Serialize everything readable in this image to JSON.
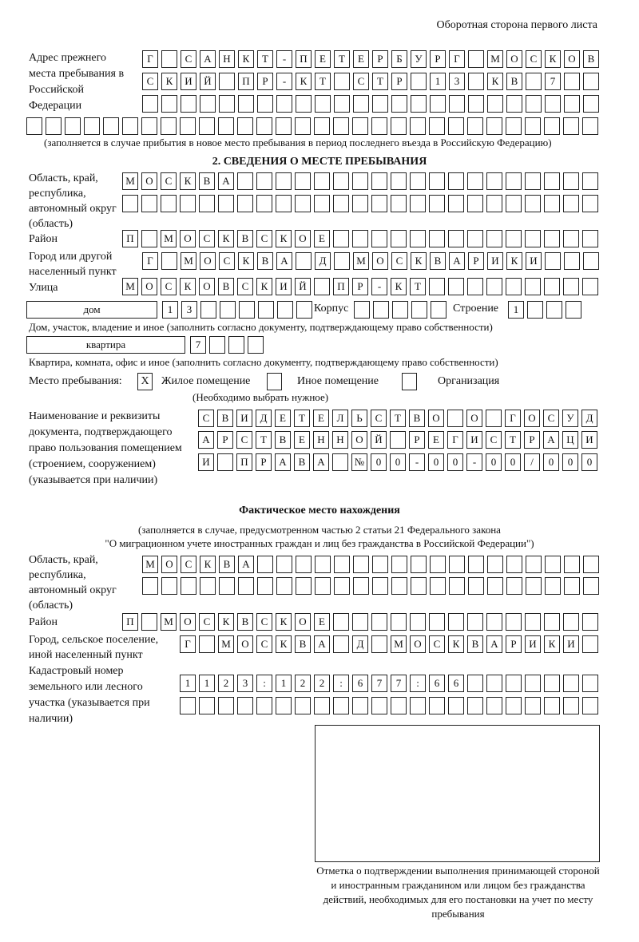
{
  "header": "Оборотная сторона первого листа",
  "prev_address": {
    "label": "Адрес прежнего места пребывания в Российской Федерации",
    "rows": [
      [
        "Г",
        "",
        "С",
        "А",
        "Н",
        "К",
        "Т",
        "-",
        "П",
        "Е",
        "Т",
        "Е",
        "Р",
        "Б",
        "У",
        "Р",
        "Г",
        "",
        "М",
        "О",
        "С",
        "К",
        "О",
        "В"
      ],
      [
        "С",
        "К",
        "И",
        "Й",
        "",
        "П",
        "Р",
        "-",
        "К",
        "Т",
        "",
        "С",
        "Т",
        "Р",
        "",
        "1",
        "3",
        "",
        "К",
        "В",
        "",
        "7",
        "",
        ""
      ],
      [
        "",
        "",
        "",
        "",
        "",
        "",
        "",
        "",
        "",
        "",
        "",
        "",
        "",
        "",
        "",
        "",
        "",
        "",
        "",
        "",
        "",
        "",
        "",
        ""
      ],
      [
        "",
        "",
        "",
        "",
        "",
        "",
        "",
        "",
        "",
        "",
        "",
        "",
        "",
        "",
        "",
        "",
        "",
        "",
        "",
        "",
        "",
        "",
        "",
        "",
        "",
        "",
        "",
        "",
        "",
        ""
      ]
    ],
    "note": "(заполняется в случае прибытия в новое место пребывания в период последнего въезда в Российскую Федерацию)"
  },
  "section2": {
    "title": "2. СВЕДЕНИЯ О МЕСТЕ ПРЕБЫВАНИЯ",
    "region_label": "Область, край, республика, автономный округ (область)",
    "region_rows": [
      [
        "М",
        "О",
        "С",
        "К",
        "В",
        "А",
        "",
        "",
        "",
        "",
        "",
        "",
        "",
        "",
        "",
        "",
        "",
        "",
        "",
        "",
        "",
        "",
        "",
        "",
        ""
      ],
      [
        "",
        "",
        "",
        "",
        "",
        "",
        "",
        "",
        "",
        "",
        "",
        "",
        "",
        "",
        "",
        "",
        "",
        "",
        "",
        "",
        "",
        "",
        "",
        "",
        ""
      ]
    ],
    "district_label": "Район",
    "district_row": [
      "П",
      "",
      "М",
      "О",
      "С",
      "К",
      "В",
      "С",
      "К",
      "О",
      "Е",
      "",
      "",
      "",
      "",
      "",
      "",
      "",
      "",
      "",
      "",
      "",
      "",
      "",
      ""
    ],
    "city_label": "Город или другой населенный пункт",
    "city_row": [
      "Г",
      "",
      "М",
      "О",
      "С",
      "К",
      "В",
      "А",
      "",
      "Д",
      "",
      "М",
      "О",
      "С",
      "К",
      "В",
      "А",
      "Р",
      "И",
      "К",
      "И",
      "",
      "",
      ""
    ],
    "street_label": "Улица",
    "street_row": [
      "М",
      "О",
      "С",
      "К",
      "О",
      "В",
      "С",
      "К",
      "И",
      "Й",
      "",
      "П",
      "Р",
      "-",
      "К",
      "Т",
      "",
      "",
      "",
      "",
      "",
      "",
      "",
      "",
      ""
    ],
    "house_type": "дом",
    "house_cells": [
      "1",
      "3",
      "",
      "",
      "",
      "",
      "",
      ""
    ],
    "korpus_label": "Корпус",
    "korpus_cells": [
      "",
      "",
      "",
      "",
      ""
    ],
    "building_label": "Строение",
    "building_cells": [
      "1",
      "",
      "",
      ""
    ],
    "house_note": "Дом, участок, владение и иное (заполнить согласно документу, подтверждающему право собственности)",
    "flat_type": "квартира",
    "flat_cells": [
      "7",
      "",
      "",
      ""
    ],
    "flat_note": "Квартира, комната, офис и иное (заполнить согласно документу, подтверждающему право собственности)",
    "stay_label": "Место пребывания:",
    "stay_options": [
      {
        "label": "Жилое помещение",
        "mark": "X"
      },
      {
        "label": "Иное помещение",
        "mark": ""
      },
      {
        "label": "Организация",
        "mark": ""
      }
    ],
    "stay_hint": "(Необходимо выбрать нужное)",
    "doc_label": "Наименование и реквизиты документа, подтверждающего право пользования помещением (строением, сооружением) (указывается при наличии)",
    "doc_rows": [
      [
        "С",
        "В",
        "И",
        "Д",
        "Е",
        "Т",
        "Е",
        "Л",
        "Ь",
        "С",
        "Т",
        "В",
        "О",
        "",
        "О",
        "",
        "Г",
        "О",
        "С",
        "У",
        "Д"
      ],
      [
        "А",
        "Р",
        "С",
        "Т",
        "В",
        "Е",
        "Н",
        "Н",
        "О",
        "Й",
        "",
        "Р",
        "Е",
        "Г",
        "И",
        "С",
        "Т",
        "Р",
        "А",
        "Ц",
        "И"
      ],
      [
        "И",
        "",
        "П",
        "Р",
        "А",
        "В",
        "А",
        "",
        "№",
        "0",
        "0",
        "-",
        "0",
        "0",
        "-",
        "0",
        "0",
        "/",
        "0",
        "0",
        "0"
      ]
    ]
  },
  "actual": {
    "title": "Фактическое место нахождения",
    "note1": "(заполняется в случае, предусмотренном частью 2 статьи 21 Федерального закона",
    "note2": "\"О миграционном учете иностранных граждан и лиц без гражданства в Российской Федерации\")",
    "region_label": "Область, край, республика, автономный округ (область)",
    "region_rows": [
      [
        "М",
        "О",
        "С",
        "К",
        "В",
        "А",
        "",
        "",
        "",
        "",
        "",
        "",
        "",
        "",
        "",
        "",
        "",
        "",
        "",
        "",
        "",
        "",
        "",
        ""
      ],
      [
        "",
        "",
        "",
        "",
        "",
        "",
        "",
        "",
        "",
        "",
        "",
        "",
        "",
        "",
        "",
        "",
        "",
        "",
        "",
        "",
        "",
        "",
        "",
        ""
      ]
    ],
    "district_label": "Район",
    "district_row": [
      "П",
      "",
      "М",
      "О",
      "С",
      "К",
      "В",
      "С",
      "К",
      "О",
      "Е",
      "",
      "",
      "",
      "",
      "",
      "",
      "",
      "",
      "",
      "",
      "",
      "",
      "",
      ""
    ],
    "city_label": "Город, сельское поселение, иной населенный пункт",
    "city_row": [
      "Г",
      "",
      "М",
      "О",
      "С",
      "К",
      "В",
      "А",
      "",
      "Д",
      "",
      "М",
      "О",
      "С",
      "К",
      "В",
      "А",
      "Р",
      "И",
      "К",
      "И",
      ""
    ],
    "cadastre_label": "Кадастровый номер земельного или лесного участка (указывается при наличии)",
    "cadastre_rows": [
      [
        "1",
        "1",
        "2",
        "3",
        ":",
        "1",
        "2",
        "2",
        ":",
        "6",
        "7",
        "7",
        ":",
        "6",
        "6",
        "",
        "",
        "",
        "",
        "",
        "",
        ""
      ],
      [
        "",
        "",
        "",
        "",
        "",
        "",
        "",
        "",
        "",
        "",
        "",
        "",
        "",
        "",
        "",
        "",
        "",
        "",
        "",
        "",
        "",
        ""
      ]
    ]
  },
  "confirmation_caption": "Отметка о подтверждении выполнения принимающей стороной и иностранным гражданином или лицом без гражданства действий, необходимых для его постановки на учет по месту пребывания"
}
